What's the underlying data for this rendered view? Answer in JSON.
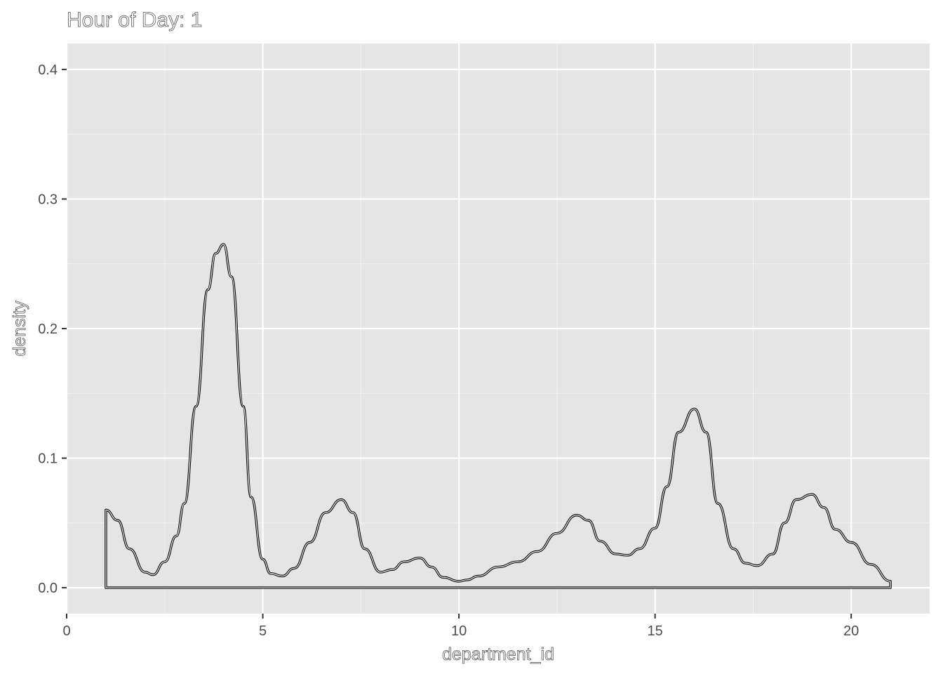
{
  "chart_data": {
    "type": "area",
    "title": "Hour of Day: 1",
    "xlabel": "department_id",
    "ylabel": "density",
    "xlim": [
      0,
      22
    ],
    "ylim": [
      -0.02,
      0.42
    ],
    "x_ticks": [
      0,
      5,
      10,
      15,
      20
    ],
    "x_tick_labels": [
      "0",
      "5",
      "10",
      "15",
      "20"
    ],
    "y_ticks": [
      0.0,
      0.1,
      0.2,
      0.3,
      0.4
    ],
    "y_tick_labels": [
      "0.0",
      "0.1",
      "0.2",
      "0.3",
      "0.4"
    ],
    "grid": true,
    "legend": "none",
    "series": [
      {
        "x": [
          1,
          1.3,
          1.6,
          2.0,
          2.2,
          2.5,
          2.8,
          3.0,
          3.3,
          3.6,
          3.8,
          4.0,
          4.2,
          4.5,
          4.7,
          5.0,
          5.2,
          5.5,
          5.8,
          6.2,
          6.6,
          7.0,
          7.3,
          7.6,
          8.0,
          8.3,
          8.6,
          9.0,
          9.3,
          9.6,
          10.0,
          10.2,
          10.5,
          11.0,
          11.5,
          12.0,
          12.5,
          13.0,
          13.3,
          13.6,
          14.0,
          14.3,
          14.6,
          15.0,
          15.3,
          15.6,
          16.0,
          16.3,
          16.6,
          17.0,
          17.3,
          17.6,
          18.0,
          18.3,
          18.6,
          19.0,
          19.3,
          19.6,
          20.0,
          20.5,
          21.0
        ],
        "y": [
          0.06,
          0.052,
          0.03,
          0.012,
          0.01,
          0.02,
          0.04,
          0.065,
          0.14,
          0.23,
          0.258,
          0.265,
          0.24,
          0.14,
          0.07,
          0.022,
          0.011,
          0.009,
          0.015,
          0.035,
          0.058,
          0.068,
          0.058,
          0.03,
          0.012,
          0.014,
          0.02,
          0.023,
          0.016,
          0.008,
          0.005,
          0.006,
          0.009,
          0.016,
          0.02,
          0.028,
          0.042,
          0.056,
          0.052,
          0.036,
          0.026,
          0.025,
          0.03,
          0.046,
          0.078,
          0.12,
          0.138,
          0.12,
          0.065,
          0.03,
          0.019,
          0.017,
          0.026,
          0.05,
          0.068,
          0.072,
          0.062,
          0.045,
          0.035,
          0.018,
          0.005
        ]
      }
    ],
    "colors": {
      "panel_background": "#e5e5e5",
      "grid_major": "#ffffff",
      "grid_minor": "#f2f2f2",
      "area_outline": "#000000",
      "area_fill": "#e5e5e5"
    }
  }
}
